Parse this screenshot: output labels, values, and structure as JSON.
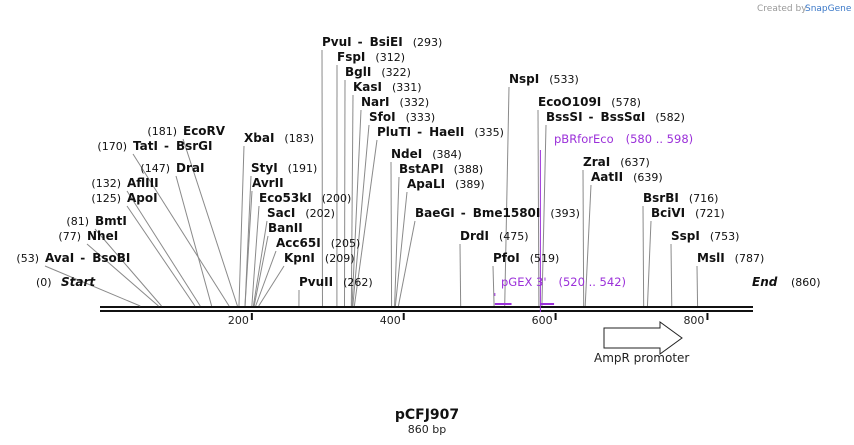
{
  "credit": {
    "prefix": "Created by",
    "brand": "SnapGene"
  },
  "plasmid": {
    "name": "pCFJ907",
    "length_label": "860 bp",
    "length": 860
  },
  "ends": {
    "start_label": "Start",
    "start_pos": "(0)",
    "end_label": "End",
    "end_pos": "(860)"
  },
  "ticks": [
    {
      "value": 200,
      "label": "200"
    },
    {
      "value": 400,
      "label": "400"
    },
    {
      "value": 600,
      "label": "600"
    },
    {
      "value": 800,
      "label": "800"
    }
  ],
  "feature": {
    "name": "AmpR promoter",
    "start": 667,
    "end": 772
  },
  "sites": [
    {
      "cut": 53,
      "name": "AvaI",
      "name2": "BsoBI",
      "pos": "(53)"
    },
    {
      "cut": 77,
      "name": "NheI",
      "pos": "(77)"
    },
    {
      "cut": 81,
      "name": "BmtI",
      "pos": "(81)"
    },
    {
      "cut": 125,
      "name": "ApoI",
      "pos": "(125)"
    },
    {
      "cut": 132,
      "name": "AflIII",
      "pos": "(132)"
    },
    {
      "cut": 147,
      "name": "DraI",
      "pos": "(147)"
    },
    {
      "cut": 170,
      "name": "TatI",
      "name2": "BsrGI",
      "pos": "(170)"
    },
    {
      "cut": 181,
      "name": "EcoRV",
      "pos": "(181)"
    },
    {
      "cut": 183,
      "name": "XbaI",
      "pos": "(183)"
    },
    {
      "cut": 191,
      "name": "StyI",
      "pos": "(191)"
    },
    {
      "cut": 191,
      "name": "AvrII",
      "pos": ""
    },
    {
      "cut": 200,
      "name": "Eco53kI",
      "pos": "(200)"
    },
    {
      "cut": 202,
      "name": "SacI",
      "pos": "(202)"
    },
    {
      "cut": 203,
      "name": "BanII",
      "pos": ""
    },
    {
      "cut": 205,
      "name": "Acc65I",
      "pos": "(205)"
    },
    {
      "cut": 209,
      "name": "KpnI",
      "pos": "(209)"
    },
    {
      "cut": 262,
      "name": "PvuII",
      "pos": "(262)"
    },
    {
      "cut": 293,
      "name": "PvuI",
      "name2": "BsiEI",
      "pos": "(293)"
    },
    {
      "cut": 312,
      "name": "FspI",
      "pos": "(312)"
    },
    {
      "cut": 322,
      "name": "BglI",
      "pos": "(322)"
    },
    {
      "cut": 331,
      "name": "KasI",
      "pos": "(331)"
    },
    {
      "cut": 332,
      "name": "NarI",
      "pos": "(332)"
    },
    {
      "cut": 333,
      "name": "SfoI",
      "pos": "(333)"
    },
    {
      "cut": 335,
      "name": "PluTI",
      "name2": "HaeII",
      "pos": "(335)"
    },
    {
      "cut": 384,
      "name": "NdeI",
      "pos": "(384)"
    },
    {
      "cut": 388,
      "name": "BstAPI",
      "pos": "(388)"
    },
    {
      "cut": 389,
      "name": "ApaLI",
      "pos": "(389)"
    },
    {
      "cut": 393,
      "name": "BaeGI",
      "name2": "Bme1580I",
      "pos": "(393)"
    },
    {
      "cut": 475,
      "name": "DrdI",
      "pos": "(475)"
    },
    {
      "cut": 519,
      "name": "PfoI",
      "pos": "(519)"
    },
    {
      "cut": 533,
      "name": "NspI",
      "pos": "(533)"
    },
    {
      "cut": 578,
      "name": "EcoO109I",
      "pos": "(578)"
    },
    {
      "cut": 582,
      "name": "BssSI",
      "name2": "BssSαI",
      "pos": "(582)"
    },
    {
      "cut": 637,
      "name": "ZraI",
      "pos": "(637)"
    },
    {
      "cut": 639,
      "name": "AatII",
      "pos": "(639)"
    },
    {
      "cut": 716,
      "name": "BsrBI",
      "pos": "(716)"
    },
    {
      "cut": 721,
      "name": "BciVI",
      "pos": "(721)"
    },
    {
      "cut": 753,
      "name": "SspI",
      "pos": "(753)"
    },
    {
      "cut": 787,
      "name": "MslI",
      "pos": "(787)"
    }
  ],
  "primers": [
    {
      "name": "pGEX 3'",
      "range": "(520 .. 542)",
      "start": 520,
      "end": 542,
      "direction": "forward"
    },
    {
      "name": "pBRforEco",
      "range": "(580 .. 598)",
      "start": 580,
      "end": 598,
      "direction": "forward"
    }
  ]
}
